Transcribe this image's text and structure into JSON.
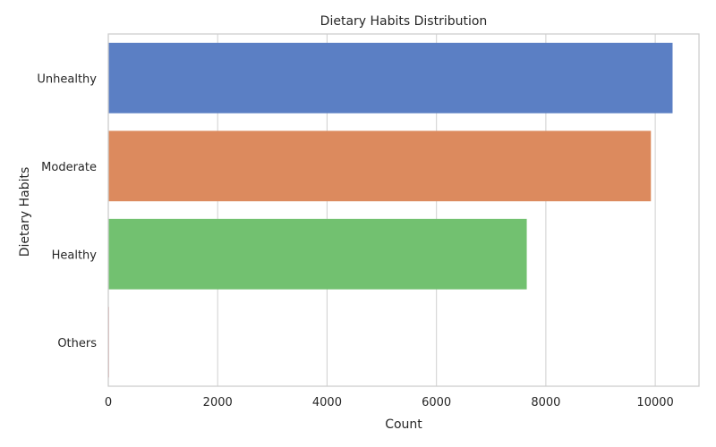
{
  "chart_data": {
    "type": "bar",
    "orientation": "horizontal",
    "title": "Dietary Habits Distribution",
    "xlabel": "Count",
    "ylabel": "Dietary Habits",
    "categories": [
      "Unhealthy",
      "Moderate",
      "Healthy",
      "Others"
    ],
    "values": [
      10317,
      9921,
      7651,
      12
    ],
    "colors": [
      "#5b7fc4",
      "#dc8a5e",
      "#72c170",
      "#d65f5f"
    ],
    "xlim": [
      0,
      10800
    ],
    "xticks": [
      0,
      2000,
      4000,
      6000,
      8000,
      10000
    ],
    "grid": true,
    "legend": "none"
  }
}
